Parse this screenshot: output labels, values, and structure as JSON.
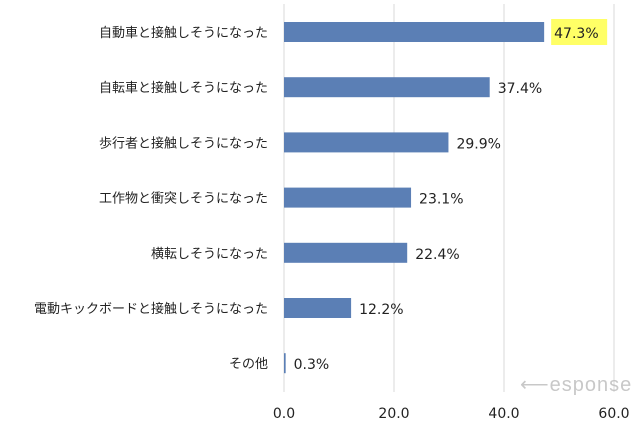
{
  "chart_data": {
    "type": "bar",
    "orientation": "horizontal",
    "categories": [
      "自動車と接触しそうになった",
      "自転車と接触しそうになった",
      "歩行者と接触しそうになった",
      "工作物と衝突しそうになった",
      "横転しそうになった",
      "電動キックボードと接触しそうになった",
      "その他"
    ],
    "values": [
      47.3,
      37.4,
      29.9,
      23.1,
      22.4,
      12.2,
      0.3
    ],
    "data_labels": [
      "47.3%",
      "37.4%",
      "29.9%",
      "23.1%",
      "22.4%",
      "12.2%",
      "0.3%"
    ],
    "highlighted_index": 0,
    "xlim": [
      0,
      60
    ],
    "xticks": [
      "0.0",
      "20.0",
      "40.0",
      "60.0"
    ],
    "grid": true,
    "title": "",
    "xlabel": "",
    "ylabel": "",
    "colors": {
      "bar": "#5b7fb5",
      "highlight": "#ffff66",
      "grid": "#d9d9d9"
    }
  },
  "watermark": "Response"
}
